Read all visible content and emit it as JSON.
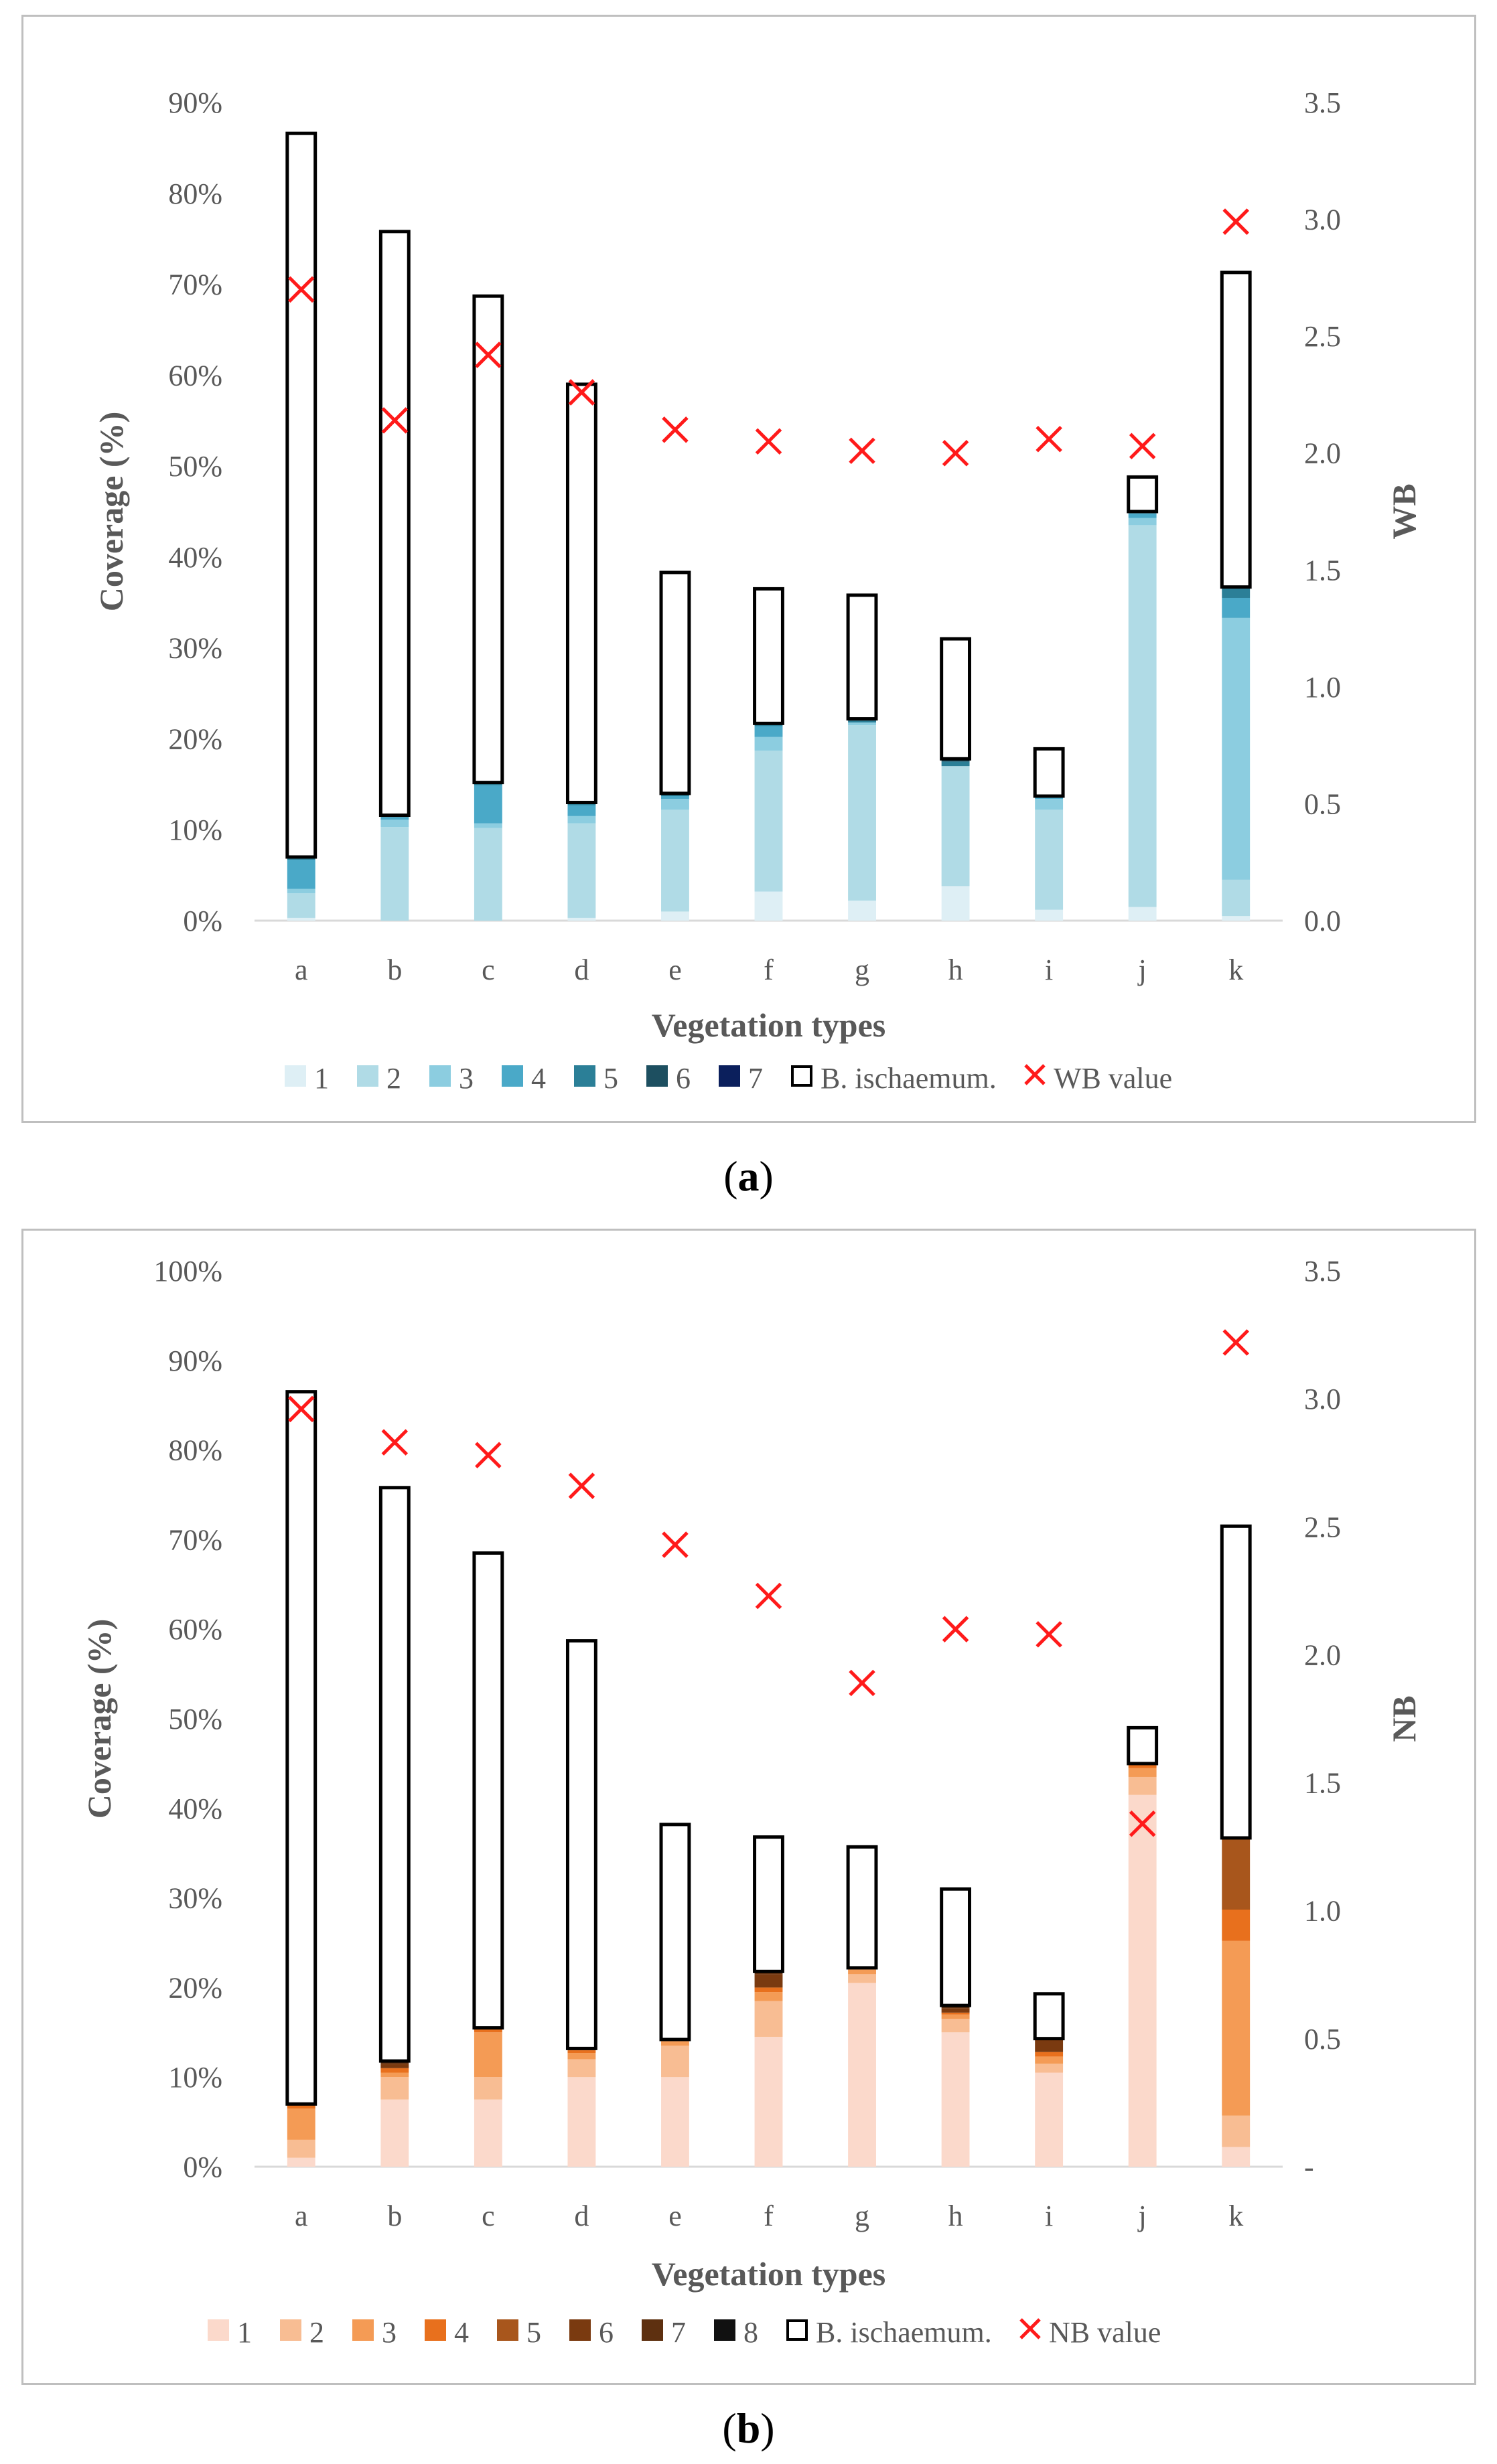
{
  "captions": {
    "a": {
      "open": "(",
      "letter": "a",
      "close": ")"
    },
    "b": {
      "open": "(",
      "letter": "b",
      "close": ")"
    }
  },
  "chart_data": [
    {
      "type": "bar",
      "stacked": true,
      "title": "",
      "xlabel": "Vegetation types",
      "ylabel": "Coverage (%)",
      "y2label": "WB",
      "ylim": [
        0,
        90
      ],
      "y2lim": [
        0,
        3.5
      ],
      "yticks": [
        "0%",
        "10%",
        "20%",
        "30%",
        "40%",
        "50%",
        "60%",
        "70%",
        "80%",
        "90%"
      ],
      "y2ticks": [
        "0.0",
        "0.5",
        "1.0",
        "1.5",
        "2.0",
        "2.5",
        "3.0",
        "3.5"
      ],
      "categories": [
        "a",
        "b",
        "c",
        "d",
        "e",
        "f",
        "g",
        "h",
        "i",
        "j",
        "k"
      ],
      "series": [
        {
          "name": "1",
          "color": "#deeff5",
          "values": [
            0.3,
            0,
            0,
            0.3,
            1,
            3.2,
            2.2,
            3.8,
            1.2,
            1.5,
            0.5
          ]
        },
        {
          "name": "2",
          "color": "#b0dbe6",
          "values": [
            2.7,
            10.3,
            10.2,
            10.4,
            11.2,
            15.5,
            19.3,
            13.2,
            11.0,
            42.0,
            4.0
          ]
        },
        {
          "name": "3",
          "color": "#8ccde0",
          "values": [
            0.5,
            0.8,
            0.5,
            0.8,
            1.2,
            1.5,
            0.3,
            0,
            1.2,
            0.8,
            28.8
          ]
        },
        {
          "name": "4",
          "color": "#4aa9c8",
          "values": [
            3.2,
            0.3,
            4.2,
            1.2,
            0.3,
            1.2,
            0,
            0,
            0.3,
            0.5,
            2.2
          ]
        },
        {
          "name": "5",
          "color": "#2b7f97",
          "values": [
            0.3,
            0,
            0.3,
            0.3,
            0.3,
            0.3,
            0.2,
            0.5,
            0,
            0.2,
            1.2
          ]
        },
        {
          "name": "6",
          "color": "#1d4f60",
          "values": [
            0,
            0.2,
            0,
            0,
            0,
            0,
            0.2,
            0.3,
            0,
            0,
            0
          ]
        },
        {
          "name": "7",
          "color": "#0b1f5c",
          "values": [
            0,
            0,
            0,
            0,
            0,
            0,
            0,
            0,
            0,
            0,
            0
          ]
        },
        {
          "name": "B. ischaemum.",
          "color": "#ffffff",
          "values": [
            79.6,
            64.2,
            53.5,
            46.0,
            24.3,
            14.8,
            13.6,
            13.2,
            5.2,
            3.8,
            34.6
          ]
        }
      ],
      "marker_series": {
        "name": "WB value",
        "color": "#ff1a1a",
        "axis": "secondary",
        "values": [
          2.7,
          2.14,
          2.42,
          2.26,
          2.1,
          2.05,
          2.01,
          2.0,
          2.06,
          2.03,
          2.99
        ]
      },
      "legend_position": "bottom"
    },
    {
      "type": "bar",
      "stacked": true,
      "title": "",
      "xlabel": "Vegetation types",
      "ylabel": "Coverage (%)",
      "y2label": "NB",
      "ylim": [
        0,
        100
      ],
      "y2lim": [
        0,
        3.5
      ],
      "yticks": [
        "0%",
        "10%",
        "20%",
        "30%",
        "40%",
        "50%",
        "60%",
        "70%",
        "80%",
        "90%",
        "100%"
      ],
      "y2ticks": [
        "-",
        "0.5",
        "1.0",
        "1.5",
        "2.0",
        "2.5",
        "3.0",
        "3.5"
      ],
      "categories": [
        "a",
        "b",
        "c",
        "d",
        "e",
        "f",
        "g",
        "h",
        "i",
        "j",
        "k"
      ],
      "series": [
        {
          "name": "1",
          "color": "#fbd9cb",
          "values": [
            1.0,
            7.5,
            7.5,
            10.0,
            10.0,
            14.5,
            20.5,
            15.0,
            10.5,
            41.5,
            2.2
          ]
        },
        {
          "name": "2",
          "color": "#f8bd93",
          "values": [
            2.0,
            2.5,
            2.5,
            2.0,
            3.5,
            4.0,
            1.0,
            1.5,
            1.0,
            2.0,
            3.5
          ]
        },
        {
          "name": "3",
          "color": "#f49b55",
          "values": [
            3.5,
            0.5,
            5.0,
            0.7,
            0.5,
            1.0,
            0.5,
            0.5,
            0.8,
            1.0,
            19.5
          ]
        },
        {
          "name": "4",
          "color": "#e8701d",
          "values": [
            0.5,
            0.5,
            0.5,
            0.3,
            0.2,
            0.5,
            0.2,
            0.2,
            0.5,
            0.5,
            3.5
          ]
        },
        {
          "name": "5",
          "color": "#a8561c",
          "values": [
            0,
            0,
            0,
            0,
            0,
            0,
            0,
            0,
            0,
            0,
            8.0
          ]
        },
        {
          "name": "6",
          "color": "#7a3a10",
          "values": [
            0,
            0.5,
            0,
            0,
            0,
            1.5,
            0,
            0.5,
            1.5,
            0,
            0
          ]
        },
        {
          "name": "7",
          "color": "#5e3010",
          "values": [
            0,
            0.3,
            0,
            0.2,
            0,
            0.3,
            0,
            0.3,
            0,
            0,
            0
          ]
        },
        {
          "name": "8",
          "color": "#111111",
          "values": [
            0,
            0,
            0,
            0,
            0,
            0,
            0,
            0,
            0,
            0,
            0
          ]
        },
        {
          "name": "B. ischaemum.",
          "color": "#ffffff",
          "values": [
            79.5,
            64.0,
            53.0,
            45.5,
            24.0,
            15.0,
            13.5,
            13.0,
            5.0,
            4.0,
            34.8
          ]
        }
      ],
      "marker_series": {
        "name": "NB value",
        "color": "#ff1a1a",
        "axis": "secondary",
        "values": [
          2.96,
          2.83,
          2.78,
          2.66,
          2.43,
          2.23,
          1.89,
          2.1,
          2.08,
          1.34,
          3.22
        ]
      },
      "legend_position": "bottom"
    }
  ]
}
